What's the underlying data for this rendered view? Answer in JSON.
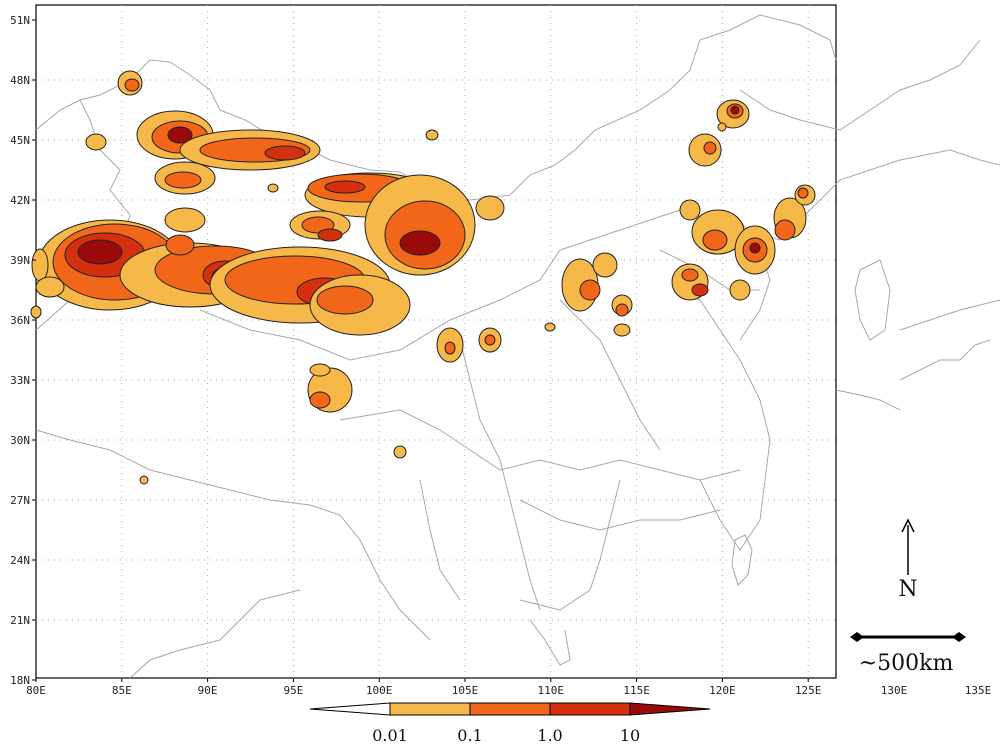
{
  "map": {
    "lat_labels": [
      "51N",
      "48N",
      "45N",
      "42N",
      "39N",
      "36N",
      "33N",
      "30N",
      "27N",
      "24N",
      "21N",
      "18N"
    ],
    "lon_labels": [
      "80E",
      "85E",
      "90E",
      "95E",
      "100E",
      "105E",
      "110E",
      "115E",
      "120E",
      "125E",
      "130E",
      "135E"
    ],
    "north_label": "N",
    "scale_label": "~500km"
  },
  "legend": {
    "labels": [
      "0.01",
      "0.1",
      "1.0",
      "10"
    ],
    "colors": [
      "#ffffff",
      "#f7b84a",
      "#f2661a",
      "#d43010",
      "#9a0a0a"
    ]
  },
  "colors": {
    "level_low": "#f7b84a",
    "level_mid": "#f2661a",
    "level_high": "#d43010",
    "level_max": "#9a0a0a",
    "border": "#a8a8a8",
    "grid": "#aaaaaa"
  }
}
